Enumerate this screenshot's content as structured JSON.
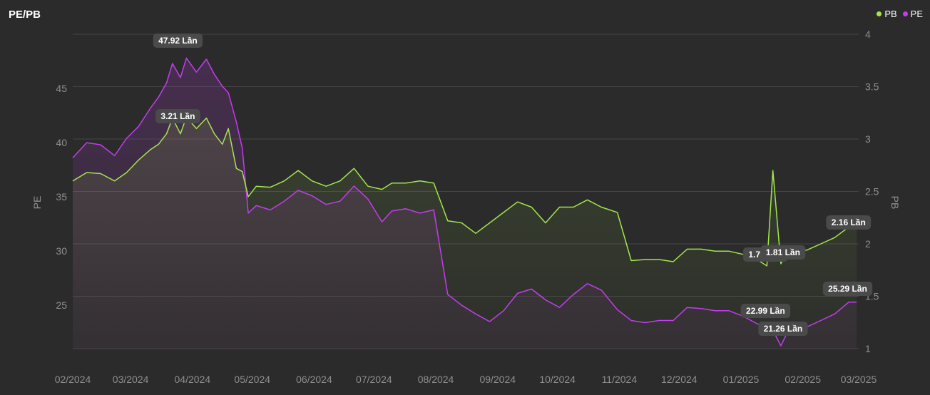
{
  "title": "PE/PB",
  "colors": {
    "pe": "#c43cf0",
    "pb": "#a3e64a",
    "background": "#2b2b2b",
    "grid": "#444444",
    "tick": "#8f8f8f",
    "annotation_bg": "#4a4a4a"
  },
  "legend": [
    {
      "name": "PB",
      "color": "#a3e64a"
    },
    {
      "name": "PE",
      "color": "#c43cf0"
    }
  ],
  "chart_data": {
    "type": "line",
    "title": "PE/PB",
    "xlabel": "",
    "ylabel_left": "PE",
    "ylabel_right": "PB",
    "x_ticks": [
      "02/2024",
      "03/2024",
      "04/2024",
      "05/2024",
      "06/2024",
      "07/2024",
      "08/2024",
      "09/2024",
      "10/2024",
      "11/2024",
      "12/2024",
      "01/2025",
      "02/2025",
      "03/2025"
    ],
    "y_left_ticks": [
      25,
      30,
      35,
      40,
      45
    ],
    "y_left_range": [
      21,
      50
    ],
    "y_right_ticks": [
      "1",
      "1.5",
      "2",
      "2.5",
      "3",
      "3.5",
      "4"
    ],
    "y_right_range": [
      1,
      4
    ],
    "grid": true,
    "legend_position": "top-right",
    "series": [
      {
        "name": "PE",
        "axis": "left",
        "x": [
          "2024-02-01",
          "2024-02-08",
          "2024-02-15",
          "2024-02-22",
          "2024-02-28",
          "2024-03-05",
          "2024-03-11",
          "2024-03-15",
          "2024-03-19",
          "2024-03-22",
          "2024-03-26",
          "2024-03-29",
          "2024-04-03",
          "2024-04-08",
          "2024-04-12",
          "2024-04-16",
          "2024-04-19",
          "2024-04-23",
          "2024-04-26",
          "2024-04-29",
          "2024-05-03",
          "2024-05-10",
          "2024-05-17",
          "2024-05-24",
          "2024-05-31",
          "2024-06-07",
          "2024-06-14",
          "2024-06-21",
          "2024-06-28",
          "2024-07-05",
          "2024-07-10",
          "2024-07-17",
          "2024-07-24",
          "2024-07-31",
          "2024-08-07",
          "2024-08-14",
          "2024-08-21",
          "2024-08-28",
          "2024-09-04",
          "2024-09-11",
          "2024-09-18",
          "2024-09-25",
          "2024-10-02",
          "2024-10-09",
          "2024-10-16",
          "2024-10-23",
          "2024-10-31",
          "2024-11-07",
          "2024-11-14",
          "2024-11-21",
          "2024-11-28",
          "2024-12-05",
          "2024-12-12",
          "2024-12-19",
          "2024-12-26",
          "2025-01-02",
          "2025-01-09",
          "2025-01-14",
          "2025-01-17",
          "2025-01-21",
          "2025-01-24",
          "2025-02-03",
          "2025-02-10",
          "2025-02-17",
          "2025-02-24",
          "2025-02-28"
        ],
        "values": [
          38.6,
          40.0,
          39.8,
          38.8,
          40.4,
          41.5,
          43.2,
          44.2,
          45.5,
          47.3,
          46.0,
          47.8,
          46.5,
          47.7,
          46.3,
          45.2,
          44.6,
          41.9,
          39.5,
          33.5,
          34.2,
          33.8,
          34.6,
          35.6,
          35.1,
          34.3,
          34.6,
          36.0,
          34.8,
          32.7,
          33.7,
          33.9,
          33.5,
          33.8,
          26.0,
          25.0,
          24.2,
          23.5,
          24.5,
          26.1,
          26.5,
          25.5,
          24.8,
          26.0,
          27.0,
          26.4,
          24.6,
          23.6,
          23.4,
          23.6,
          23.6,
          24.8,
          24.7,
          24.5,
          24.5,
          24.0,
          23.3,
          22.99,
          22.7,
          21.26,
          22.4,
          23.0,
          23.6,
          24.2,
          25.29,
          25.29
        ],
        "peak": {
          "x": "2024-03-29",
          "value": 47.92,
          "label": "47.92 Lần"
        },
        "annotations": [
          {
            "x": "2025-01-14",
            "value": 22.99,
            "label": "22.99 Lần"
          },
          {
            "x": "2025-01-21",
            "value": 21.26,
            "label": "21.26 Lần"
          },
          {
            "x": "2025-02-28",
            "value": 25.29,
            "label": "25.29 Lần"
          }
        ]
      },
      {
        "name": "PB",
        "axis": "right",
        "x": [
          "2024-02-01",
          "2024-02-08",
          "2024-02-15",
          "2024-02-22",
          "2024-02-28",
          "2024-03-05",
          "2024-03-11",
          "2024-03-15",
          "2024-03-19",
          "2024-03-22",
          "2024-03-26",
          "2024-03-29",
          "2024-04-03",
          "2024-04-08",
          "2024-04-12",
          "2024-04-16",
          "2024-04-19",
          "2024-04-23",
          "2024-04-26",
          "2024-04-29",
          "2024-05-03",
          "2024-05-10",
          "2024-05-17",
          "2024-05-24",
          "2024-05-31",
          "2024-06-07",
          "2024-06-14",
          "2024-06-21",
          "2024-06-28",
          "2024-07-05",
          "2024-07-10",
          "2024-07-17",
          "2024-07-24",
          "2024-07-31",
          "2024-08-07",
          "2024-08-14",
          "2024-08-21",
          "2024-08-28",
          "2024-09-04",
          "2024-09-11",
          "2024-09-18",
          "2024-09-25",
          "2024-10-02",
          "2024-10-09",
          "2024-10-16",
          "2024-10-23",
          "2024-10-31",
          "2024-11-07",
          "2024-11-14",
          "2024-11-21",
          "2024-11-28",
          "2024-12-05",
          "2024-12-12",
          "2024-12-19",
          "2024-12-26",
          "2025-01-02",
          "2025-01-09",
          "2025-01-14",
          "2025-01-17",
          "2025-01-21",
          "2025-01-24",
          "2025-02-03",
          "2025-02-10",
          "2025-02-17",
          "2025-02-24",
          "2025-02-28"
        ],
        "values": [
          2.6,
          2.68,
          2.67,
          2.6,
          2.68,
          2.8,
          2.9,
          2.95,
          3.05,
          3.2,
          3.05,
          3.21,
          3.1,
          3.2,
          3.05,
          2.95,
          3.1,
          2.72,
          2.69,
          2.45,
          2.55,
          2.54,
          2.6,
          2.7,
          2.6,
          2.55,
          2.6,
          2.72,
          2.55,
          2.52,
          2.58,
          2.58,
          2.6,
          2.58,
          2.22,
          2.2,
          2.1,
          2.2,
          2.3,
          2.4,
          2.35,
          2.2,
          2.35,
          2.35,
          2.42,
          2.35,
          2.3,
          1.84,
          1.85,
          1.85,
          1.83,
          1.95,
          1.95,
          1.93,
          1.93,
          1.9,
          1.85,
          1.79,
          2.7,
          1.81,
          1.92,
          1.94,
          2.0,
          2.06,
          2.16,
          2.16
        ],
        "peak": {
          "x": "2024-03-29",
          "value": 3.21,
          "label": "3.21 Lần"
        },
        "annotations": [
          {
            "x": "2025-01-14",
            "value": 1.79,
            "label": "1.79 Lần"
          },
          {
            "x": "2025-01-21",
            "value": 1.81,
            "label": "1.81 Lần"
          },
          {
            "x": "2025-02-28",
            "value": 2.16,
            "label": "2.16 Lần"
          }
        ]
      }
    ]
  }
}
